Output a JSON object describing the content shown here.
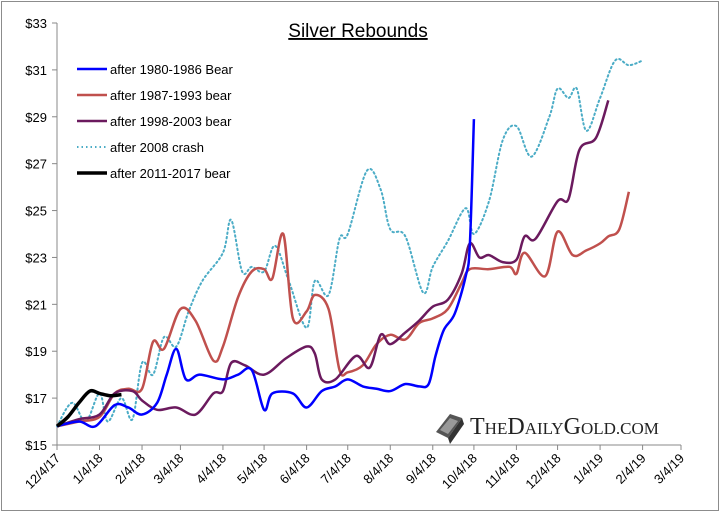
{
  "chart_data": {
    "type": "line",
    "title": "Silver Rebounds",
    "xlabel": "",
    "ylabel": "",
    "xlim": [
      "2017-12-04",
      "2019-03-04"
    ],
    "ylim": [
      15,
      33
    ],
    "x_tick_labels": [
      "12/4/17",
      "1/4/18",
      "2/4/18",
      "3/4/18",
      "4/4/18",
      "5/4/18",
      "6/4/18",
      "7/4/18",
      "8/4/18",
      "9/4/18",
      "10/4/18",
      "11/4/18",
      "12/4/18",
      "1/4/19",
      "2/4/19",
      "3/4/19"
    ],
    "x_tick_dates": [
      "2017-12-04",
      "2018-01-04",
      "2018-02-04",
      "2018-03-04",
      "2018-04-04",
      "2018-05-04",
      "2018-06-04",
      "2018-07-04",
      "2018-08-04",
      "2018-09-04",
      "2018-10-04",
      "2018-11-04",
      "2018-12-04",
      "2019-01-04",
      "2019-02-04",
      "2019-03-04"
    ],
    "y_ticks": [
      15,
      17,
      19,
      21,
      23,
      25,
      27,
      29,
      31,
      33
    ],
    "y_tick_labels": [
      "$15",
      "$17",
      "$19",
      "$21",
      "$23",
      "$25",
      "$27",
      "$29",
      "$31",
      "$33"
    ],
    "grid": false,
    "legend_placement": "top-left",
    "series": [
      {
        "name": "after 1980-1986 Bear",
        "color": "#0000ff",
        "style": "solid",
        "points": [
          [
            "2017-12-04",
            15.8
          ],
          [
            "2017-12-20",
            16.0
          ],
          [
            "2018-01-01",
            15.8
          ],
          [
            "2018-01-15",
            16.7
          ],
          [
            "2018-01-25",
            16.6
          ],
          [
            "2018-02-04",
            16.3
          ],
          [
            "2018-02-15",
            16.8
          ],
          [
            "2018-02-22",
            18.0
          ],
          [
            "2018-03-01",
            19.1
          ],
          [
            "2018-03-08",
            17.8
          ],
          [
            "2018-03-18",
            18.0
          ],
          [
            "2018-04-04",
            17.8
          ],
          [
            "2018-04-15",
            18.0
          ],
          [
            "2018-04-25",
            18.2
          ],
          [
            "2018-05-04",
            16.5
          ],
          [
            "2018-05-10",
            17.2
          ],
          [
            "2018-05-25",
            17.2
          ],
          [
            "2018-06-04",
            16.6
          ],
          [
            "2018-06-15",
            17.3
          ],
          [
            "2018-06-25",
            17.5
          ],
          [
            "2018-07-04",
            17.8
          ],
          [
            "2018-07-15",
            17.5
          ],
          [
            "2018-07-25",
            17.4
          ],
          [
            "2018-08-04",
            17.3
          ],
          [
            "2018-08-15",
            17.6
          ],
          [
            "2018-08-25",
            17.5
          ],
          [
            "2018-09-01",
            17.6
          ],
          [
            "2018-09-06",
            18.8
          ],
          [
            "2018-09-12",
            19.9
          ],
          [
            "2018-09-20",
            20.6
          ],
          [
            "2018-09-28",
            22.2
          ],
          [
            "2018-10-01",
            23.5
          ],
          [
            "2018-10-04",
            28.9
          ]
        ]
      },
      {
        "name": "after 1987-1993 bear",
        "color": "#c0504d",
        "style": "solid",
        "points": [
          [
            "2017-12-04",
            15.8
          ],
          [
            "2017-12-20",
            16.0
          ],
          [
            "2018-01-04",
            16.2
          ],
          [
            "2018-01-15",
            17.2
          ],
          [
            "2018-01-25",
            17.4
          ],
          [
            "2018-02-04",
            17.4
          ],
          [
            "2018-02-12",
            19.4
          ],
          [
            "2018-02-20",
            19.1
          ],
          [
            "2018-03-04",
            20.8
          ],
          [
            "2018-03-15",
            20.3
          ],
          [
            "2018-03-28",
            18.6
          ],
          [
            "2018-04-04",
            19.2
          ],
          [
            "2018-04-15",
            21.3
          ],
          [
            "2018-04-25",
            22.4
          ],
          [
            "2018-05-04",
            22.5
          ],
          [
            "2018-05-10",
            22.1
          ],
          [
            "2018-05-18",
            24.0
          ],
          [
            "2018-05-25",
            20.4
          ],
          [
            "2018-06-04",
            20.7
          ],
          [
            "2018-06-10",
            21.4
          ],
          [
            "2018-06-20",
            20.8
          ],
          [
            "2018-06-28",
            18.2
          ],
          [
            "2018-07-04",
            18.1
          ],
          [
            "2018-07-15",
            18.4
          ],
          [
            "2018-07-25",
            19.3
          ],
          [
            "2018-08-04",
            19.7
          ],
          [
            "2018-08-15",
            19.5
          ],
          [
            "2018-08-25",
            20.2
          ],
          [
            "2018-09-04",
            20.4
          ],
          [
            "2018-09-15",
            20.8
          ],
          [
            "2018-09-25",
            21.9
          ],
          [
            "2018-10-01",
            22.5
          ],
          [
            "2018-10-15",
            22.5
          ],
          [
            "2018-10-30",
            22.6
          ],
          [
            "2018-11-04",
            22.3
          ],
          [
            "2018-11-10",
            23.2
          ],
          [
            "2018-11-25",
            22.2
          ],
          [
            "2018-12-04",
            24.1
          ],
          [
            "2018-12-15",
            23.1
          ],
          [
            "2018-12-25",
            23.3
          ],
          [
            "2019-01-04",
            23.6
          ],
          [
            "2019-01-10",
            23.9
          ],
          [
            "2019-01-18",
            24.2
          ],
          [
            "2019-01-25",
            25.8
          ]
        ]
      },
      {
        "name": "after 1998-2003 bear",
        "color": "#6b1a5e",
        "style": "solid",
        "points": [
          [
            "2017-12-04",
            15.8
          ],
          [
            "2017-12-20",
            16.1
          ],
          [
            "2018-01-04",
            16.3
          ],
          [
            "2018-01-15",
            17.2
          ],
          [
            "2018-01-28",
            17.3
          ],
          [
            "2018-02-04",
            16.9
          ],
          [
            "2018-02-15",
            16.5
          ],
          [
            "2018-03-01",
            16.6
          ],
          [
            "2018-03-15",
            16.3
          ],
          [
            "2018-03-28",
            17.2
          ],
          [
            "2018-04-04",
            17.3
          ],
          [
            "2018-04-10",
            18.5
          ],
          [
            "2018-04-20",
            18.4
          ],
          [
            "2018-05-04",
            18.0
          ],
          [
            "2018-05-20",
            18.7
          ],
          [
            "2018-06-04",
            19.2
          ],
          [
            "2018-06-10",
            18.9
          ],
          [
            "2018-06-15",
            17.8
          ],
          [
            "2018-06-25",
            17.8
          ],
          [
            "2018-07-10",
            18.8
          ],
          [
            "2018-07-20",
            18.3
          ],
          [
            "2018-07-28",
            19.7
          ],
          [
            "2018-08-04",
            19.3
          ],
          [
            "2018-08-15",
            19.8
          ],
          [
            "2018-08-25",
            20.3
          ],
          [
            "2018-09-04",
            20.9
          ],
          [
            "2018-09-15",
            21.2
          ],
          [
            "2018-09-25",
            22.3
          ],
          [
            "2018-10-01",
            23.6
          ],
          [
            "2018-10-08",
            23.0
          ],
          [
            "2018-10-15",
            23.1
          ],
          [
            "2018-10-25",
            22.8
          ],
          [
            "2018-11-04",
            22.9
          ],
          [
            "2018-11-10",
            23.9
          ],
          [
            "2018-11-18",
            23.8
          ],
          [
            "2018-12-04",
            25.4
          ],
          [
            "2018-12-12",
            25.5
          ],
          [
            "2018-12-20",
            27.6
          ],
          [
            "2019-01-01",
            28.1
          ],
          [
            "2019-01-10",
            29.7
          ]
        ]
      },
      {
        "name": "after 2008 crash",
        "color": "#4bacc6",
        "style": "dotted",
        "points": [
          [
            "2017-12-04",
            15.8
          ],
          [
            "2017-12-15",
            16.8
          ],
          [
            "2017-12-25",
            16.0
          ],
          [
            "2018-01-04",
            17.2
          ],
          [
            "2018-01-10",
            16.0
          ],
          [
            "2018-01-20",
            17.0
          ],
          [
            "2018-01-28",
            16.1
          ],
          [
            "2018-02-04",
            18.5
          ],
          [
            "2018-02-12",
            18.0
          ],
          [
            "2018-02-20",
            19.6
          ],
          [
            "2018-03-01",
            19.2
          ],
          [
            "2018-03-10",
            20.7
          ],
          [
            "2018-03-20",
            22.0
          ],
          [
            "2018-04-04",
            23.2
          ],
          [
            "2018-04-10",
            24.6
          ],
          [
            "2018-04-18",
            22.4
          ],
          [
            "2018-04-25",
            22.6
          ],
          [
            "2018-05-04",
            22.4
          ],
          [
            "2018-05-12",
            23.5
          ],
          [
            "2018-05-22",
            22.0
          ],
          [
            "2018-06-04",
            20.0
          ],
          [
            "2018-06-10",
            22.0
          ],
          [
            "2018-06-20",
            21.4
          ],
          [
            "2018-06-28",
            23.8
          ],
          [
            "2018-07-04",
            24.0
          ],
          [
            "2018-07-18",
            26.7
          ],
          [
            "2018-07-28",
            25.9
          ],
          [
            "2018-08-04",
            24.2
          ],
          [
            "2018-08-15",
            23.9
          ],
          [
            "2018-08-28",
            21.5
          ],
          [
            "2018-09-04",
            22.6
          ],
          [
            "2018-09-15",
            23.7
          ],
          [
            "2018-09-28",
            25.1
          ],
          [
            "2018-10-04",
            24.0
          ],
          [
            "2018-10-15",
            25.4
          ],
          [
            "2018-10-25",
            28.0
          ],
          [
            "2018-11-04",
            28.6
          ],
          [
            "2018-11-15",
            27.3
          ],
          [
            "2018-11-28",
            29.0
          ],
          [
            "2018-12-04",
            30.2
          ],
          [
            "2018-12-12",
            29.8
          ],
          [
            "2018-12-18",
            30.2
          ],
          [
            "2018-12-25",
            28.4
          ],
          [
            "2019-01-04",
            29.8
          ],
          [
            "2019-01-15",
            31.4
          ],
          [
            "2019-01-25",
            31.2
          ],
          [
            "2019-02-04",
            31.4
          ]
        ]
      },
      {
        "name": "after 2011-2017 bear",
        "color": "#000000",
        "style": "solid",
        "points": [
          [
            "2017-12-04",
            15.8
          ],
          [
            "2017-12-12",
            16.2
          ],
          [
            "2017-12-20",
            16.8
          ],
          [
            "2017-12-28",
            17.3
          ],
          [
            "2018-01-04",
            17.2
          ],
          [
            "2018-01-12",
            17.1
          ],
          [
            "2018-01-20",
            17.15
          ]
        ]
      }
    ],
    "watermark": "THEDAILYGOLD.COM"
  }
}
